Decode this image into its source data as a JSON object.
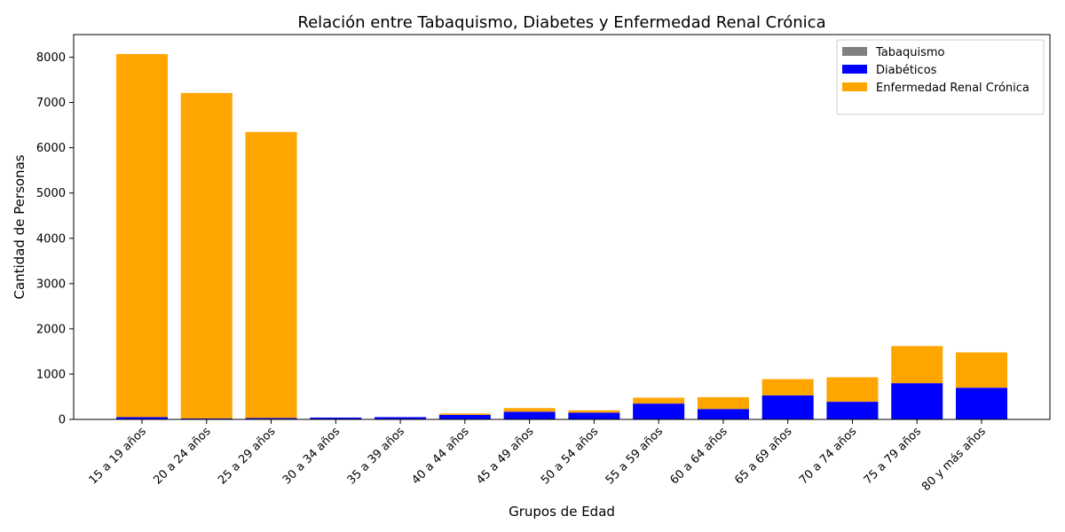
{
  "chart_data": {
    "type": "bar",
    "stacked": true,
    "title": "Relación entre Tabaquismo, Diabetes y Enfermedad Renal Crónica",
    "xlabel": "Grupos de Edad",
    "ylabel": "Cantidad de Personas",
    "ylim": [
      0,
      8500
    ],
    "yticks": [
      0,
      1000,
      2000,
      3000,
      4000,
      5000,
      6000,
      7000,
      8000
    ],
    "grid": false,
    "legend_position": "top-right",
    "categories": [
      "15 a 19 años",
      "20 a 24 años",
      "25 a 29 años",
      "30 a 34 años",
      "35 a 39 años",
      "40 a 44 años",
      "45 a 49 años",
      "50 a 54 años",
      "55 a 59 años",
      "60 a 64 años",
      "65 a 69 años",
      "70 a 74 años",
      "75 a 79 años",
      "80 y más años"
    ],
    "series": [
      {
        "name": "Tabaquismo",
        "color": "#808080",
        "values": [
          0,
          0,
          0,
          0,
          0,
          0,
          0,
          0,
          0,
          0,
          0,
          0,
          0,
          0
        ]
      },
      {
        "name": "Diabéticos",
        "color": "#0000ff",
        "values": [
          50,
          20,
          30,
          40,
          50,
          100,
          170,
          150,
          350,
          230,
          530,
          390,
          800,
          700
        ]
      },
      {
        "name": "Enfermedad Renal Crónica",
        "color": "#ffa500",
        "values": [
          8020,
          7190,
          6320,
          0,
          0,
          30,
          80,
          50,
          130,
          260,
          360,
          540,
          820,
          780
        ]
      }
    ]
  }
}
